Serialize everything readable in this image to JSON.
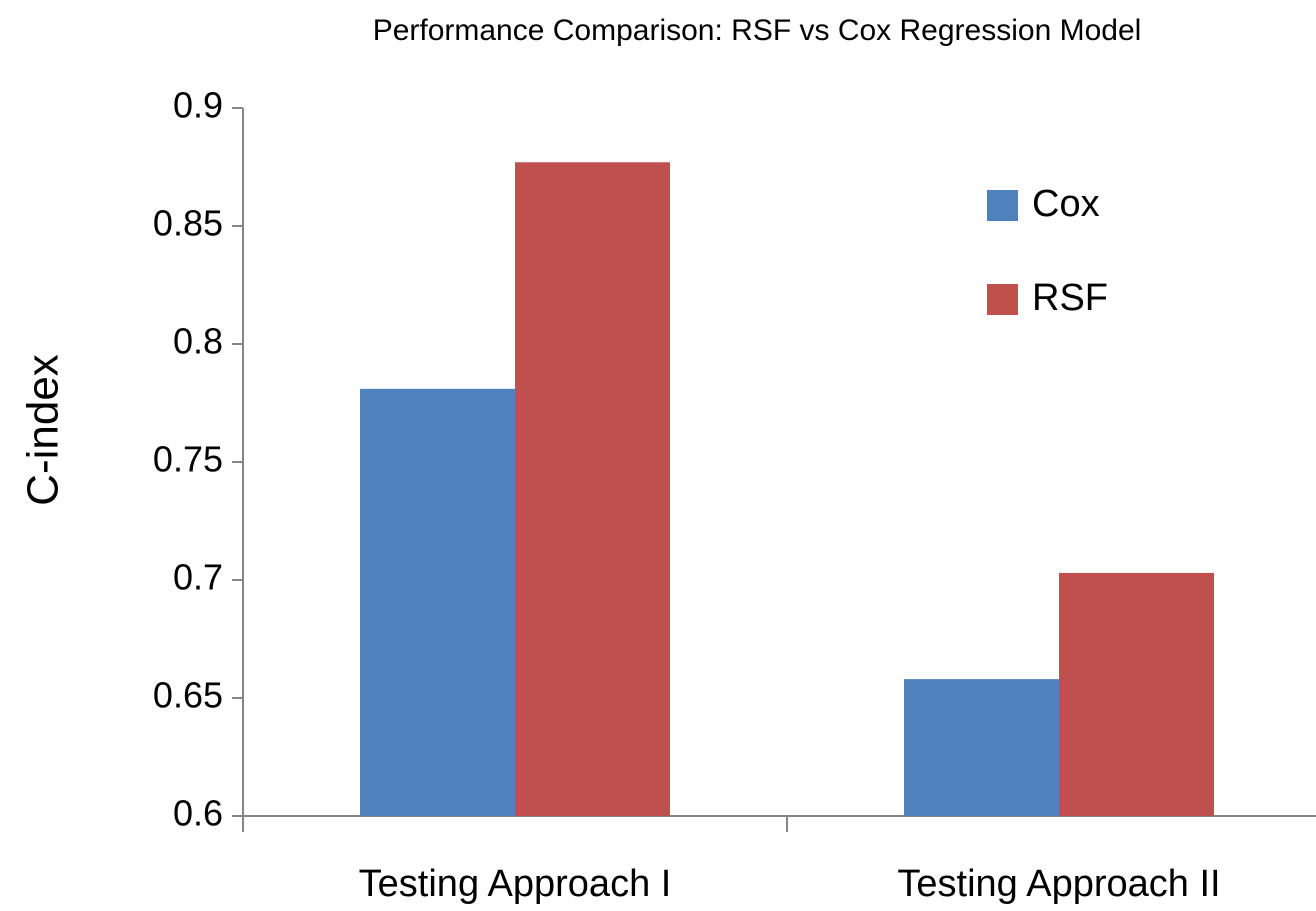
{
  "chart_data": {
    "type": "bar",
    "title": "Performance Comparison: RSF vs Cox Regression Model",
    "y_label": "C-index",
    "categories": [
      "Testing Approach I",
      "Testing Approach II"
    ],
    "series": [
      {
        "name": "Cox",
        "color": "#4f81bd",
        "values": [
          0.781,
          0.658
        ]
      },
      {
        "name": "RSF",
        "color": "#c0504d",
        "values": [
          0.877,
          0.703
        ]
      }
    ],
    "ylim": [
      0.6,
      0.9
    ],
    "yticks": [
      0.9,
      0.85,
      0.8,
      0.75,
      0.7,
      0.65,
      0.6
    ],
    "grid": false,
    "legend": "upper right"
  }
}
